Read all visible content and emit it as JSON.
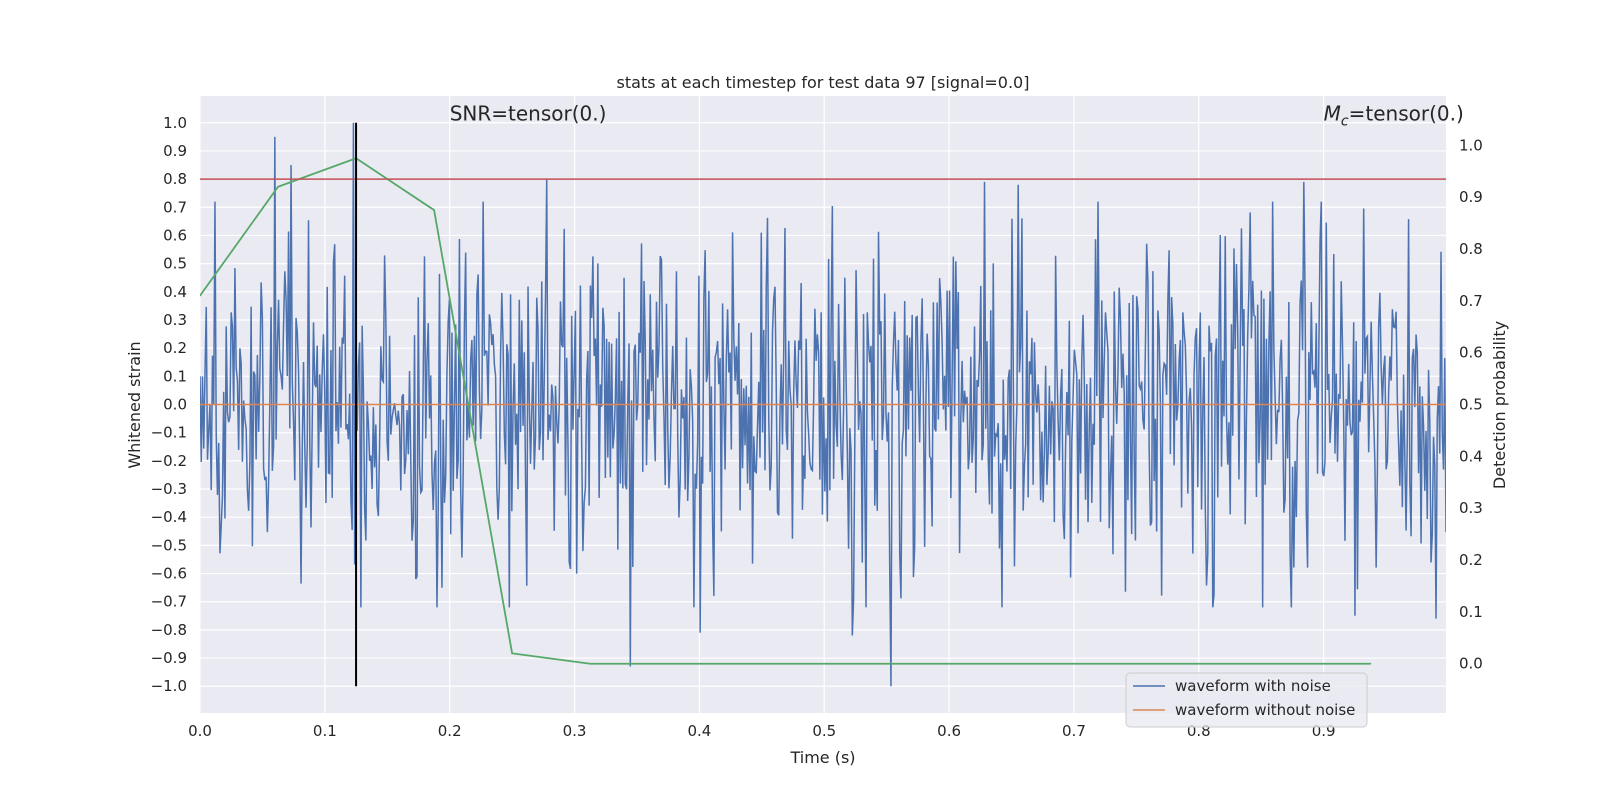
{
  "chart_data": {
    "type": "line",
    "title": "stats at each timestep for test data 97 [signal=0.0]",
    "xlabel": "Time (s)",
    "ylabel_left": "Whitened strain",
    "ylabel_right": "Detection probability",
    "xlim": [
      0.0,
      0.998
    ],
    "ylim_left": [
      -1.095,
      1.095
    ],
    "ylim_right": [
      -0.095,
      1.095
    ],
    "grid": true,
    "background_color": "#EAEAF2",
    "x_ticks": [
      0.0,
      0.1,
      0.2,
      0.3,
      0.4,
      0.5,
      0.6,
      0.7,
      0.8,
      0.9
    ],
    "x_tick_labels": [
      "0.0",
      "0.1",
      "0.2",
      "0.3",
      "0.4",
      "0.5",
      "0.6",
      "0.7",
      "0.8",
      "0.9"
    ],
    "y_left_ticks": [
      1.0,
      0.9,
      0.8,
      0.7,
      0.6,
      0.5,
      0.4,
      0.3,
      0.2,
      0.1,
      0.0,
      -0.1,
      -0.2,
      -0.3,
      -0.4,
      -0.5,
      -0.6,
      -0.7,
      -0.8,
      -0.9,
      -1.0
    ],
    "y_left_tick_labels": [
      "1.0",
      "0.9",
      "0.8",
      "0.7",
      "0.6",
      "0.5",
      "0.4",
      "0.3",
      "0.2",
      "0.1",
      "0.0",
      "−0.1",
      "−0.2",
      "−0.3",
      "−0.4",
      "−0.5",
      "−0.6",
      "−0.7",
      "−0.8",
      "−0.9",
      "−1.0"
    ],
    "y_right_ticks": [
      1.0,
      0.9,
      0.8,
      0.7,
      0.6,
      0.5,
      0.4,
      0.3,
      0.2,
      0.1,
      0.0
    ],
    "y_right_tick_labels": [
      "1.0",
      "0.9",
      "0.8",
      "0.7",
      "0.6",
      "0.5",
      "0.4",
      "0.3",
      "0.2",
      "0.1",
      "0.0"
    ],
    "annotations": {
      "snr": {
        "text": "SNR=tensor(0.)",
        "x": 0.2,
        "y_left": 1.03
      },
      "mc": {
        "prefix": "M",
        "subscript": "c",
        "text": "=tensor(0.)",
        "x": 0.9,
        "y_left": 1.03
      }
    },
    "series": [
      {
        "name": "waveform with noise",
        "axis": "left",
        "color": "#4C72B0",
        "num_samples": 1000,
        "x_start": 0.0,
        "x_end": 0.998,
        "y_min": -1.0,
        "y_max": 1.0,
        "noise_std": 0.3,
        "peaks": [
          {
            "x": 0.06,
            "y": 0.95
          },
          {
            "x": 0.073,
            "y": 0.85
          },
          {
            "x": 0.123,
            "y": 1.0
          },
          {
            "x": 0.278,
            "y": 0.8
          },
          {
            "x": 0.345,
            "y": -0.93
          },
          {
            "x": 0.401,
            "y": -0.81
          },
          {
            "x": 0.522,
            "y": -0.82
          },
          {
            "x": 0.553,
            "y": -1.0
          },
          {
            "x": 0.628,
            "y": 0.79
          },
          {
            "x": 0.655,
            "y": 0.78
          },
          {
            "x": 0.884,
            "y": 0.79
          },
          {
            "x": 0.925,
            "y": -0.75
          },
          {
            "x": 0.99,
            "y": -0.76
          }
        ]
      },
      {
        "name": "waveform without noise",
        "axis": "left",
        "color": "#DD8452",
        "x": [
          0.0,
          0.998
        ],
        "y": [
          0.0,
          0.0
        ]
      },
      {
        "name": "",
        "axis": "right",
        "color": "#55A868",
        "x": [
          0.0,
          0.0625,
          0.125,
          0.1875,
          0.25,
          0.3125,
          0.375,
          0.4375,
          0.5,
          0.5625,
          0.625,
          0.6875,
          0.75,
          0.8125,
          0.875,
          0.9375
        ],
        "y": [
          0.71,
          0.92,
          0.975,
          0.875,
          0.02,
          0.0,
          0.0,
          0.0,
          0.0,
          0.0,
          0.0,
          0.0,
          0.0,
          0.0,
          0.0,
          0.0
        ]
      }
    ],
    "reference_lines": [
      {
        "orientation": "horizontal",
        "axis": "left",
        "value": 0.8,
        "color": "#C44E52"
      },
      {
        "orientation": "vertical",
        "value": 0.125,
        "y_from": -1.0,
        "y_to": 1.0,
        "color": "#000000"
      }
    ],
    "legend": {
      "placement": "lower-right",
      "entries": [
        {
          "label": "waveform with noise",
          "color": "#4C72B0"
        },
        {
          "label": "waveform without noise",
          "color": "#DD8452"
        }
      ]
    }
  }
}
